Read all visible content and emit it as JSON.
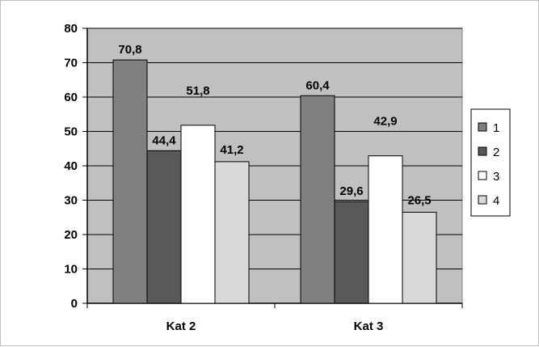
{
  "chart_data": {
    "type": "bar",
    "categories": [
      "Kat 2",
      "Kat 3"
    ],
    "series": [
      {
        "name": "1",
        "values": [
          70.8,
          60.4
        ],
        "labels": [
          "70,8",
          "60,4"
        ],
        "color": "#808080"
      },
      {
        "name": "2",
        "values": [
          44.4,
          29.6
        ],
        "labels": [
          "44,4",
          "29,6"
        ],
        "color": "#595959"
      },
      {
        "name": "3",
        "values": [
          51.8,
          42.9
        ],
        "labels": [
          "51,8",
          "42,9"
        ],
        "color": "#ffffff"
      },
      {
        "name": "4",
        "values": [
          41.2,
          26.5
        ],
        "labels": [
          "41,2",
          "26,5"
        ],
        "color": "#d9d9d9"
      }
    ],
    "ylim": [
      0,
      80
    ],
    "yticks": [
      0,
      10,
      20,
      30,
      40,
      50,
      60,
      70,
      80
    ],
    "grid": true,
    "plot_background": "#c0c0c0",
    "legend_position": "right"
  }
}
